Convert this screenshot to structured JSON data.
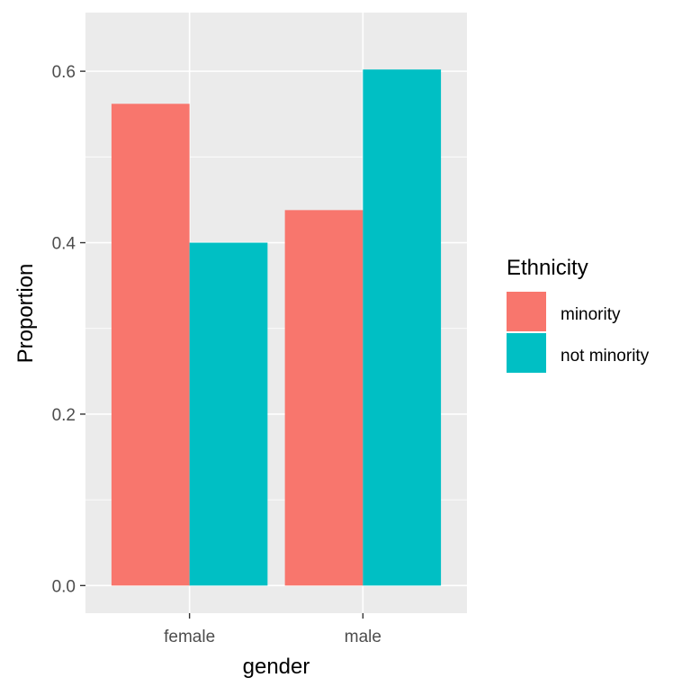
{
  "chart_data": {
    "type": "bar",
    "xlabel": "gender",
    "ylabel": "Proportion",
    "categories": [
      "female",
      "male"
    ],
    "series": [
      {
        "name": "minority",
        "values": [
          0.562,
          0.438
        ]
      },
      {
        "name": "not minority",
        "values": [
          0.4,
          0.602
        ]
      }
    ],
    "ylim": [
      -0.0322,
      0.6684
    ],
    "yticks": [
      0.0,
      0.2,
      0.4,
      0.6
    ],
    "ytick_labels": [
      "0.0",
      "0.2",
      "0.4",
      "0.6"
    ],
    "grid": true,
    "legend": {
      "title": "Ethnicity",
      "position": "right"
    },
    "colors": {
      "minority": "#F8766D",
      "not minority": "#00BFC4",
      "panel": "#EBEBEB",
      "grid": "#FFFFFF"
    }
  }
}
